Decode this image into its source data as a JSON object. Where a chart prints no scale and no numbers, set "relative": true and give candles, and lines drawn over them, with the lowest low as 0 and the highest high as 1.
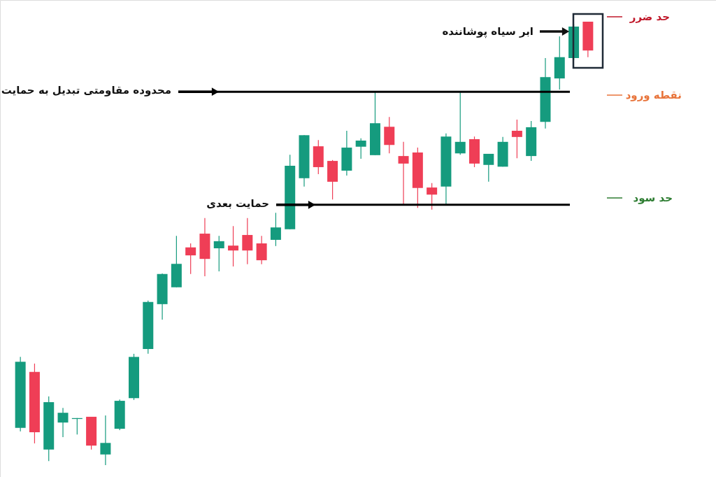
{
  "chart_data": {
    "type": "candlestick",
    "relative": true,
    "categories": [
      null,
      null,
      null,
      null,
      null,
      null,
      null,
      null,
      null,
      null,
      null,
      null,
      null,
      null,
      null,
      null,
      null,
      null,
      null,
      null,
      null,
      null,
      null,
      null,
      null,
      null,
      null,
      null,
      null,
      null,
      null,
      null,
      null,
      null,
      null,
      null,
      null,
      null,
      null,
      null,
      null
    ],
    "ohlc": [
      [
        0.084,
        0.244,
        0.076,
        0.233
      ],
      [
        0.21,
        0.229,
        0.049,
        0.074
      ],
      [
        0.035,
        0.155,
        0.009,
        0.142
      ],
      [
        0.096,
        0.129,
        0.063,
        0.118
      ],
      [
        0.104,
        0.106,
        0.069,
        0.106
      ],
      [
        0.109,
        0.109,
        0.035,
        0.044
      ],
      [
        0.024,
        0.112,
        0.0,
        0.05
      ],
      [
        0.082,
        0.148,
        0.079,
        0.145
      ],
      [
        0.151,
        0.251,
        0.147,
        0.244
      ],
      [
        0.262,
        0.371,
        0.251,
        0.368
      ],
      [
        0.363,
        0.432,
        0.328,
        0.431
      ],
      [
        0.401,
        0.517,
        0.401,
        0.454
      ],
      [
        0.491,
        0.5,
        0.431,
        0.473
      ],
      [
        0.522,
        0.557,
        0.426,
        0.465
      ],
      [
        0.489,
        0.517,
        0.437,
        0.505
      ],
      [
        0.495,
        0.539,
        0.448,
        0.484
      ],
      [
        0.519,
        0.557,
        0.453,
        0.484
      ],
      [
        0.5,
        0.517,
        0.453,
        0.462
      ],
      [
        0.508,
        0.569,
        0.494,
        0.536
      ],
      [
        0.532,
        0.7,
        0.532,
        0.675
      ],
      [
        0.647,
        0.744,
        0.628,
        0.744
      ],
      [
        0.719,
        0.733,
        0.656,
        0.672
      ],
      [
        0.686,
        0.688,
        0.599,
        0.639
      ],
      [
        0.664,
        0.754,
        0.653,
        0.716
      ],
      [
        0.718,
        0.737,
        0.691,
        0.732
      ],
      [
        0.699,
        0.841,
        0.699,
        0.771
      ],
      [
        0.763,
        0.785,
        0.703,
        0.722
      ],
      [
        0.697,
        0.729,
        0.587,
        0.68
      ],
      [
        0.705,
        0.716,
        0.58,
        0.625
      ],
      [
        0.626,
        0.636,
        0.576,
        0.61
      ],
      [
        0.628,
        0.748,
        0.587,
        0.741
      ],
      [
        0.703,
        0.841,
        0.7,
        0.729
      ],
      [
        0.735,
        0.741,
        0.672,
        0.68
      ],
      [
        0.677,
        0.702,
        0.639,
        0.702
      ],
      [
        0.673,
        0.74,
        0.673,
        0.729
      ],
      [
        0.754,
        0.779,
        0.692,
        0.74
      ],
      [
        0.697,
        0.776,
        0.686,
        0.762
      ],
      [
        0.774,
        0.918,
        0.759,
        0.875
      ],
      [
        0.872,
        0.967,
        0.847,
        0.92
      ],
      [
        0.918,
        0.994,
        0.913,
        0.989
      ],
      [
        1.0,
        1.0,
        0.92,
        0.935
      ]
    ],
    "colors": [
      "#159b7e",
      "#ef3e56",
      "#159b7e",
      "#159b7e",
      "#159b7e",
      "#ef3e56",
      "#159b7e",
      "#159b7e",
      "#159b7e",
      "#159b7e",
      "#159b7e",
      "#159b7e",
      "#ef3e56",
      "#ef3e56",
      "#159b7e",
      "#ef3e56",
      "#ef3e56",
      "#ef3e56",
      "#159b7e",
      "#159b7e",
      "#159b7e",
      "#ef3e56",
      "#ef3e56",
      "#159b7e",
      "#159b7e",
      "#159b7e",
      "#ef3e56",
      "#ef3e56",
      "#ef3e56",
      "#ef3e56",
      "#159b7e",
      "#159b7e",
      "#ef3e56",
      "#159b7e",
      "#159b7e",
      "#ef3e56",
      "#159b7e",
      "#159b7e",
      "#159b7e",
      "#159b7e",
      "#ef3e56"
    ],
    "ref_lines": [
      {
        "axis": "y",
        "value": 0.842,
        "label": "محدوده مقاومتی تبدیل به حمایت",
        "color": "#000000"
      },
      {
        "axis": "y",
        "value": 0.587,
        "label": "حمایت بعدی",
        "color": "#000000"
      }
    ],
    "annotations": [
      "ابر سیاه پوشاننده",
      "حد ضرر",
      "نقطه ورود",
      "حد سود"
    ]
  }
}
